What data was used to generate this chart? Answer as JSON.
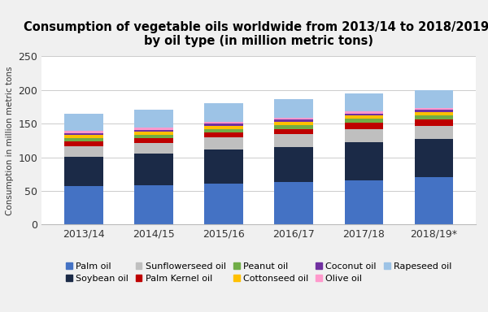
{
  "title": "Consumption of vegetable oils worldwide from 2013/14 to 2018/2019,\nby oil type (in million metric tons)",
  "ylabel": "Consumption in million metric tons",
  "categories": [
    "2013/14",
    "2014/15",
    "2015/16",
    "2016/17",
    "2017/18",
    "2018/19*"
  ],
  "ylim": [
    0,
    250
  ],
  "yticks": [
    0,
    50,
    100,
    150,
    200,
    250
  ],
  "series": [
    {
      "label": "Palm oil",
      "color": "#4472C4",
      "values": [
        57,
        59,
        61,
        63,
        66,
        70
      ]
    },
    {
      "label": "Soybean oil",
      "color": "#1B2A47",
      "values": [
        44,
        46,
        51,
        52,
        56,
        57
      ]
    },
    {
      "label": "Sunflowerseed oil",
      "color": "#BFBFBF",
      "values": [
        15,
        16,
        17,
        19,
        20,
        20
      ]
    },
    {
      "label": "Palm Kernel oil",
      "color": "#BE0000",
      "values": [
        7,
        7,
        8,
        8,
        9,
        9
      ]
    },
    {
      "label": "Peanut oil",
      "color": "#70AD47",
      "values": [
        5,
        5,
        5,
        6,
        6,
        6
      ]
    },
    {
      "label": "Cottonseed oil",
      "color": "#FFC000",
      "values": [
        5,
        5,
        5,
        5,
        5,
        5
      ]
    },
    {
      "label": "Coconut oil",
      "color": "#7030A0",
      "values": [
        3,
        3,
        3,
        3,
        3,
        3
      ]
    },
    {
      "label": "Olive oil",
      "color": "#FF99CC",
      "values": [
        3,
        3,
        3,
        3,
        3,
        3
      ]
    },
    {
      "label": "Rapeseed oil",
      "color": "#9DC3E6",
      "values": [
        26,
        26,
        27,
        27,
        27,
        27
      ]
    }
  ],
  "background_color": "#f0f0f0",
  "plot_background": "#ffffff",
  "title_fontsize": 10.5,
  "legend_fontsize": 8,
  "tick_fontsize": 9,
  "ylabel_fontsize": 7.5
}
